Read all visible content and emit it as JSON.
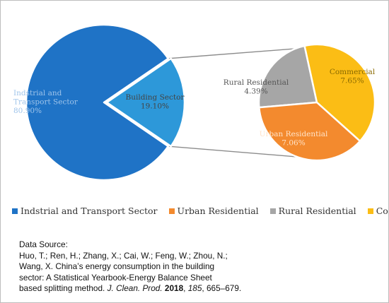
{
  "chart_data": {
    "type": "pie",
    "subtype": "pie-of-pie",
    "main_pie": {
      "slices": [
        {
          "label": "Indstrial and Transport Sector",
          "value": 80.9,
          "value_label": "80.90%",
          "color": "#1f73c6"
        },
        {
          "label": "Building Sector",
          "value": 19.1,
          "value_label": "19.10%",
          "color": "#2d98d9"
        }
      ]
    },
    "secondary_pie": {
      "parent": "Building Sector",
      "slices": [
        {
          "label": "Commercial",
          "value": 7.65,
          "value_label": "7.65%",
          "color": "#fbbd15"
        },
        {
          "label": "Urban Residential",
          "value": 7.06,
          "value_label": "7.06%",
          "color": "#f38a2e"
        },
        {
          "label": "Rural Residential",
          "value": 4.39,
          "value_label": "4.39%",
          "color": "#a6a6a6"
        }
      ]
    },
    "legend": {
      "position": "bottom",
      "items": [
        {
          "label": "Indstrial and Transport Sector",
          "color": "#1f73c6"
        },
        {
          "label": "Urban Residential",
          "color": "#f38a2e"
        },
        {
          "label": "Rural Residential",
          "color": "#a6a6a6"
        },
        {
          "label": "Commercial",
          "color": "#fbbd15"
        }
      ]
    },
    "connector_color": "#8c8c8c"
  },
  "source": {
    "heading": "Data Source:",
    "line1": "Huo, T.; Ren, H.; Zhang, X.; Cai, W.; Feng, W.; Zhou, N.;",
    "line2": "Wang, X. China’s energy consumption in the building",
    "line3": " sector: A Statistical Yearbook-Energy Balance Sheet",
    "line4_prefix": "based splitting method. ",
    "journal": "J. Clean. Prod.",
    "year": "2018",
    "volume": "185",
    "pages": ", 665–679."
  }
}
